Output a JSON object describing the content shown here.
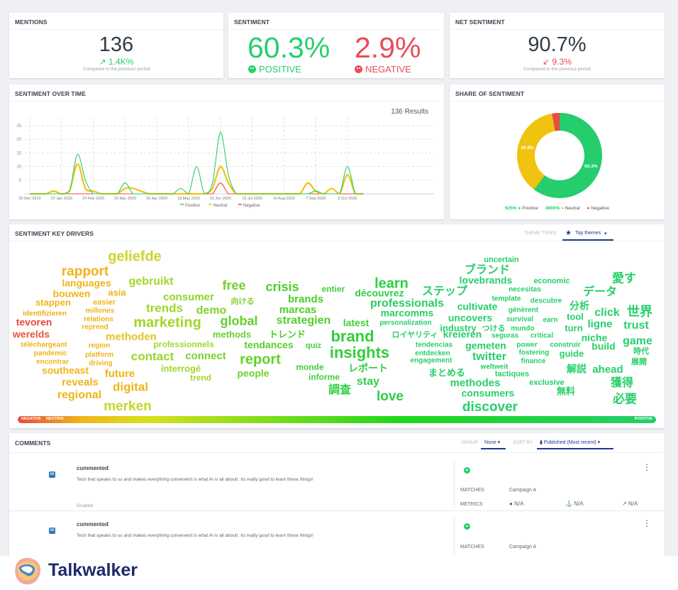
{
  "mentions": {
    "title": "MENTIONS",
    "value": "136",
    "delta": "1.4K%",
    "compare": "Compared to the previous period"
  },
  "sentiment": {
    "title": "SENTIMENT",
    "positive_value": "60.3%",
    "positive_label": "POSITIVE",
    "negative_value": "2.9%",
    "negative_label": "NEGATIVE"
  },
  "net_sentiment": {
    "title": "NET SENTIMENT",
    "value": "90.7%",
    "delta": "9.3%",
    "compare": "Compared to the previous period"
  },
  "colors": {
    "positive": "#27cf6a",
    "neutral": "#f1c40f",
    "negative": "#ea4b4b",
    "accent": "#1a3d8f"
  },
  "chart_data": [
    {
      "type": "line",
      "title": "SENTIMENT OVER TIME",
      "results": "136 Results",
      "x": [
        "30 Dec 2019",
        "6 Jan 2020",
        "13 Jan 2020",
        "20 Jan 2020",
        "27 Jan 2020",
        "3 Feb 2020",
        "10 Feb 2020",
        "17 Feb 2020",
        "24 Feb 2020",
        "2 Mar 2020",
        "9 Mar 2020",
        "16 Mar 2020",
        "23 Mar 2020",
        "30 Mar 2020",
        "6 Apr 2020",
        "13 Apr 2020",
        "20 Apr 2020",
        "27 Apr 2020",
        "4 May 2020",
        "11 May 2020",
        "18 May 2020",
        "25 May 2020",
        "1 Jun 2020",
        "8 Jun 2020",
        "15 Jun 2020",
        "22 Jun 2020",
        "29 Jun 2020",
        "6 Jul 2020",
        "13 Jul 2020",
        "20 Jul 2020",
        "27 Jul 2020",
        "3 Aug 2020",
        "10 Aug 2020",
        "17 Aug 2020",
        "24 Aug 2020",
        "31 Aug 2020",
        "7 Sep 2020",
        "14 Sep 2020",
        "21 Sep 2020",
        "28 Sep 2020",
        "5 Oct 2020",
        "12 Oct 2020",
        "19 Oct 2020"
      ],
      "xticks": [
        "30 Dec 2019",
        "27 Jan 2020",
        "24 Feb 2020",
        "23 Mar 2020",
        "20 Apr 2020",
        "18 May 2020",
        "15 Jun 2020",
        "13 Jul 2020",
        "10 Aug 2020",
        "7 Sep 2020",
        "5 Oct 2020"
      ],
      "yticks": [
        5,
        10,
        15,
        20,
        25
      ],
      "ylim": [
        0,
        25
      ],
      "grid": true,
      "legend": "bottom",
      "series": [
        {
          "name": "Positive",
          "color": "#2ecc71",
          "values": [
            0,
            0,
            0,
            0,
            0,
            1,
            14.5,
            5,
            0,
            0,
            0,
            0,
            4,
            0,
            0,
            0,
            0,
            0,
            0,
            2,
            0,
            10,
            0,
            4,
            22.5,
            7,
            0,
            0,
            0,
            0,
            0,
            0,
            0,
            0,
            0,
            0,
            1,
            0,
            0,
            0,
            10,
            0,
            0
          ]
        },
        {
          "name": "Neutral",
          "color": "#f1c40f",
          "values": [
            0,
            0,
            0,
            1,
            0,
            1,
            11,
            2,
            1,
            0,
            0,
            0,
            2,
            2,
            1,
            0,
            0,
            0,
            0,
            0,
            0,
            0,
            0,
            2,
            10,
            4,
            0,
            0,
            0,
            0,
            0,
            0,
            0,
            0,
            0,
            4,
            1,
            0,
            2,
            0,
            7,
            0,
            0
          ]
        },
        {
          "name": "Negative",
          "color": "#e74c3c",
          "values": [
            0,
            0,
            0,
            0,
            0,
            0,
            0,
            0,
            0,
            0,
            0,
            0,
            0,
            0,
            0,
            0,
            0,
            0,
            0,
            0,
            0,
            0,
            0,
            0,
            4,
            0,
            0,
            0,
            0,
            0,
            0,
            0,
            0,
            0,
            0,
            0,
            0,
            0,
            0,
            0,
            0,
            0,
            0
          ]
        }
      ]
    },
    {
      "type": "pie",
      "title": "SHARE OF SENTIMENT",
      "categories": [
        "Positive",
        "Neutral",
        "Negative"
      ],
      "values": [
        60.3,
        36.8,
        2.9
      ],
      "labels": [
        "60.3%",
        "36.8%",
        ""
      ],
      "colors": [
        "#25cd6c",
        "#f0c30f",
        "#e74c3c"
      ],
      "legend": [
        {
          "change": "925%",
          "name": "Positive"
        },
        {
          "change": "4900%",
          "name": "Neutral"
        },
        {
          "change": "",
          "name": "Negative"
        }
      ]
    }
  ],
  "drivers": {
    "title": "SENTIMENT KEY DRIVERS",
    "theme_types_label": "THEME TYPES",
    "theme_value": "Top themes",
    "scale_negative": "NEGATIVE",
    "scale_neutral": "NEUTRAL",
    "scale_positive": "POSITIVE",
    "words": [
      {
        "t": "geliefde",
        "c": "#c8d62a"
      },
      {
        "t": "rapport",
        "c": "#f0b419"
      },
      {
        "t": "gebruikt",
        "c": "#a5d62a"
      },
      {
        "t": "languages",
        "c": "#f0b419"
      },
      {
        "t": "bouwen",
        "c": "#f0b419"
      },
      {
        "t": "asia",
        "c": "#f0b419"
      },
      {
        "t": "consumer",
        "c": "#8fd42a"
      },
      {
        "t": "free",
        "c": "#6fd22a"
      },
      {
        "t": "向ける",
        "c": "#7ed42a"
      },
      {
        "t": "crisis",
        "c": "#4ccf2a"
      },
      {
        "t": "entier",
        "c": "#3dcf3a"
      },
      {
        "t": "learn",
        "c": "#2ecf45"
      },
      {
        "t": "découvrez",
        "c": "#2ecf45"
      },
      {
        "t": "stappen",
        "c": "#f0b419"
      },
      {
        "t": "easier",
        "c": "#f0b419"
      },
      {
        "t": "brands",
        "c": "#4ccf2a"
      },
      {
        "t": "identifizieren",
        "c": "#f0ac19"
      },
      {
        "t": "millones",
        "c": "#f0b419"
      },
      {
        "t": "trends",
        "c": "#a0d62a"
      },
      {
        "t": "demo",
        "c": "#7ed42a"
      },
      {
        "t": "marcas",
        "c": "#50cf2a"
      },
      {
        "t": "professionals",
        "c": "#28cf5e"
      },
      {
        "t": "marcomms",
        "c": "#28cf5e"
      },
      {
        "t": "relations",
        "c": "#f0b419"
      },
      {
        "t": "tevoren",
        "c": "#e5473a"
      },
      {
        "t": "marketing",
        "c": "#a0d62a"
      },
      {
        "t": "global",
        "c": "#62d22a"
      },
      {
        "t": "strategien",
        "c": "#50cf2a"
      },
      {
        "t": "latest",
        "c": "#3dcf3a"
      },
      {
        "t": "personalization",
        "c": "#28cf6a"
      },
      {
        "t": "reprend",
        "c": "#f0b419"
      },
      {
        "t": "brand",
        "c": "#2ecf3a"
      },
      {
        "t": "werelds",
        "c": "#e5573a"
      },
      {
        "t": "methoden",
        "c": "#e4c32a"
      },
      {
        "t": "methods",
        "c": "#62d22a"
      },
      {
        "t": "トレンド",
        "c": "#4ccf2a"
      },
      {
        "t": "ロイヤリティ",
        "c": "#28cf6a"
      },
      {
        "t": "kreieren",
        "c": "#27cf6a"
      },
      {
        "t": "seguras",
        "c": "#27cf6a"
      },
      {
        "t": "critical",
        "c": "#27cf6a"
      },
      {
        "t": "niche",
        "c": "#27cf6a"
      },
      {
        "t": "téléchargeant",
        "c": "#f0b419"
      },
      {
        "t": "region",
        "c": "#f0b419"
      },
      {
        "t": "professionnels",
        "c": "#a5d62a"
      },
      {
        "t": "tendances",
        "c": "#55cf2a"
      },
      {
        "t": "quiz",
        "c": "#40cf35"
      },
      {
        "t": "insights",
        "c": "#2ecf3a"
      },
      {
        "t": "tendencias",
        "c": "#27cf6a"
      },
      {
        "t": "gemeten",
        "c": "#27cf6a"
      },
      {
        "t": "power",
        "c": "#27cf6a"
      },
      {
        "t": "construir",
        "c": "#27cf6a"
      },
      {
        "t": "build",
        "c": "#27cf6a"
      },
      {
        "t": "game",
        "c": "#27cf6a"
      },
      {
        "t": "pandemic",
        "c": "#f0b419"
      },
      {
        "t": "platform",
        "c": "#f0b419"
      },
      {
        "t": "contact",
        "c": "#98d62a"
      },
      {
        "t": "connect",
        "c": "#78d42a"
      },
      {
        "t": "report",
        "c": "#5fd22a"
      },
      {
        "t": "entdecken",
        "c": "#27cf6a"
      },
      {
        "t": "twitter",
        "c": "#27cf6a"
      },
      {
        "t": "fostering",
        "c": "#27cf6a"
      },
      {
        "t": "guide",
        "c": "#27cf6a"
      },
      {
        "t": "時代",
        "c": "#27cf6a"
      },
      {
        "t": "encontrar",
        "c": "#f0b419"
      },
      {
        "t": "driving",
        "c": "#f0b419"
      },
      {
        "t": "finance",
        "c": "#27cf6a"
      },
      {
        "t": "engagement",
        "c": "#27cf6a"
      },
      {
        "t": "展開",
        "c": "#27cf6a"
      },
      {
        "t": "interrogé",
        "c": "#a5d62a"
      },
      {
        "t": "monde",
        "c": "#40cf35"
      },
      {
        "t": "レポート",
        "c": "#30cf45"
      },
      {
        "t": "weltweit",
        "c": "#27cf6a"
      },
      {
        "t": "解説",
        "c": "#27cf6a"
      },
      {
        "t": "ahead",
        "c": "#27cf6a"
      },
      {
        "t": "southeast",
        "c": "#f0b419"
      },
      {
        "t": "future",
        "c": "#f0b419"
      },
      {
        "t": "people",
        "c": "#6fd22a"
      },
      {
        "t": "まとめる",
        "c": "#27cf6a"
      },
      {
        "t": "tactiques",
        "c": "#27cf6a"
      },
      {
        "t": "trend",
        "c": "#a0d62a"
      },
      {
        "t": "informe",
        "c": "#40cf35"
      },
      {
        "t": "stay",
        "c": "#30cf45"
      },
      {
        "t": "exclusive",
        "c": "#27cf6a"
      },
      {
        "t": "reveals",
        "c": "#f0b419"
      },
      {
        "t": "methodes",
        "c": "#27cf6a"
      },
      {
        "t": "獲得",
        "c": "#27cf6a"
      },
      {
        "t": "digital",
        "c": "#f0b419"
      },
      {
        "t": "調査",
        "c": "#30cf45"
      },
      {
        "t": "無料",
        "c": "#27cf6a"
      },
      {
        "t": "regional",
        "c": "#f0b419"
      },
      {
        "t": "consumers",
        "c": "#27cf6a"
      },
      {
        "t": "love",
        "c": "#2ecf45"
      },
      {
        "t": "必要",
        "c": "#27cf6a"
      },
      {
        "t": "merken",
        "c": "#c8d62a"
      },
      {
        "t": "discover",
        "c": "#27cf6a"
      },
      {
        "t": "uncertain",
        "c": "#27cf6a"
      },
      {
        "t": "ブランド",
        "c": "#27cf6a"
      },
      {
        "t": "lovebrands",
        "c": "#27cf6a"
      },
      {
        "t": "economic",
        "c": "#27cf6a"
      },
      {
        "t": "愛す",
        "c": "#27cf6a"
      },
      {
        "t": "ステップ",
        "c": "#27cf6a"
      },
      {
        "t": "necesitas",
        "c": "#27cf6a"
      },
      {
        "t": "データ",
        "c": "#27cf6a"
      },
      {
        "t": "template",
        "c": "#27cf6a"
      },
      {
        "t": "descubre",
        "c": "#27cf6a"
      },
      {
        "t": "分析",
        "c": "#27cf6a"
      },
      {
        "t": "cultivate",
        "c": "#27cf6a"
      },
      {
        "t": "génèrent",
        "c": "#27cf6a"
      },
      {
        "t": "click",
        "c": "#27cf6a"
      },
      {
        "t": "世界",
        "c": "#27cf6a"
      },
      {
        "t": "uncovers",
        "c": "#27cf6a"
      },
      {
        "t": "survival",
        "c": "#27cf6a"
      },
      {
        "t": "earn",
        "c": "#27cf6a"
      },
      {
        "t": "tool",
        "c": "#27cf6a"
      },
      {
        "t": "ligne",
        "c": "#27cf6a"
      },
      {
        "t": "trust",
        "c": "#27cf6a"
      },
      {
        "t": "industry",
        "c": "#27cf6a"
      },
      {
        "t": "つける",
        "c": "#27cf6a"
      },
      {
        "t": "mundo",
        "c": "#27cf6a"
      },
      {
        "t": "turn",
        "c": "#27cf6a"
      }
    ]
  },
  "comments": {
    "title": "COMMENTS",
    "group_label": "GROUP",
    "group_value": "None",
    "sort_label": "SORT BY",
    "sort_value": "Published (Most recent)",
    "items": [
      {
        "action": "commented",
        "text": "Tech that speaks to us and makes everything convenient is what AI is all about!. Its really good to learn these things!",
        "status": "Disabled",
        "matches_label": "MATCHES",
        "matches": "Campaign A",
        "metrics_label": "METRICS",
        "metric1": "N/A",
        "metric2": "N/A",
        "metric3": "N/A"
      },
      {
        "action": "commented",
        "text": "Tech that speaks to us and makes everything convenient is what AI is all about!. Its really good to learn these things!",
        "matches_label": "MATCHES",
        "matches": "Campaign A"
      }
    ]
  },
  "brand": {
    "name": "Talkwalker"
  }
}
